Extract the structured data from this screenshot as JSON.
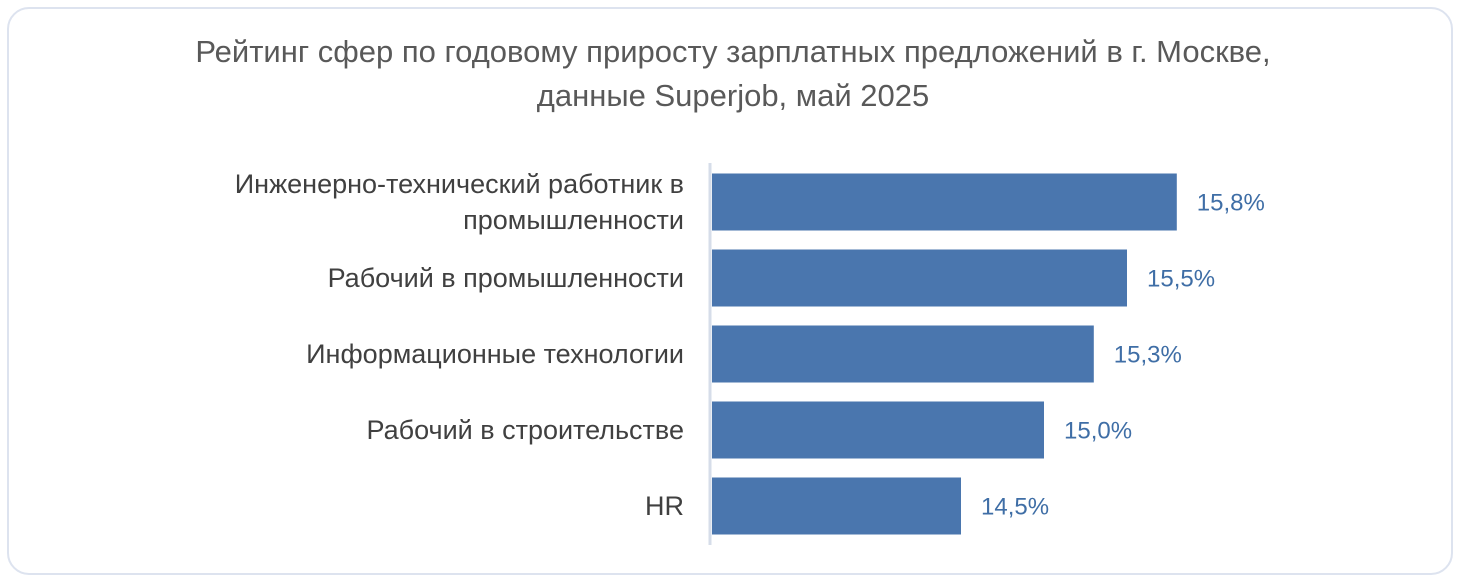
{
  "chart_data": {
    "type": "bar",
    "orientation": "horizontal",
    "title": "Рейтинг сфер по годовому приросту зарплатных предложений в г. Москве, данные Superjob, май 2025",
    "categories": [
      "Инженерно-технический работник в промышленности",
      "Рабочий в промышленности",
      "Информационные технологии",
      "Рабочий в строительстве",
      "HR"
    ],
    "values": [
      15.8,
      15.5,
      15.3,
      15.0,
      14.5
    ],
    "value_labels": [
      "15,8%",
      "15,5%",
      "15,3%",
      "15,0%",
      "14,5%"
    ],
    "color": "#4a76ae",
    "xlim": [
      13,
      17
    ]
  }
}
